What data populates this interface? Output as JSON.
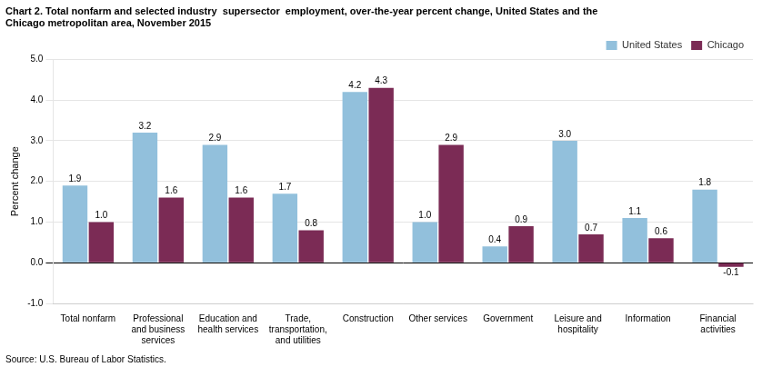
{
  "chart_data": {
    "type": "bar",
    "title": [
      "Chart 2. Total nonfarm and selected industry  supersector  employment, over-the-year percent change, United States and the",
      "Chicago metropolitan area, November 2015"
    ],
    "ylabel": "Percent change",
    "source": "Source: U.S. Bureau of Labor Statistics.",
    "categories": [
      "Total nonfarm",
      "Professional\nand business\nservices",
      "Education and\nhealth services",
      "Trade,\ntransportation,\nand utilities",
      "Construction",
      "Other services",
      "Government",
      "Leisure and\nhospitality",
      "Information",
      "Financial\nactivities"
    ],
    "series": [
      {
        "name": "United States",
        "color": "#92C0DC",
        "values": [
          1.9,
          3.2,
          2.9,
          1.7,
          4.2,
          1.0,
          0.4,
          3.0,
          1.1,
          1.8
        ],
        "value_labels": [
          "1.9",
          "3.2",
          "2.9",
          "1.7",
          "4.2",
          "1.0",
          "0.4",
          "3.0",
          "1.1",
          "1.8"
        ]
      },
      {
        "name": "Chicago",
        "color": "#7B2B55",
        "values": [
          1.0,
          1.6,
          1.6,
          0.8,
          4.3,
          2.9,
          0.9,
          0.7,
          0.6,
          -0.1
        ],
        "value_labels": [
          "1.0",
          "1.6",
          "1.6",
          "0.8",
          "4.3",
          "2.9",
          "0.9",
          "0.7",
          "0.6",
          "-0.1"
        ]
      }
    ],
    "ylim": [
      -1.0,
      5.0
    ],
    "yticks": [
      {
        "value": -1.0,
        "label": "-1.0"
      },
      {
        "value": 0.0,
        "label": "0.0"
      },
      {
        "value": 1.0,
        "label": "1.0"
      },
      {
        "value": 2.0,
        "label": "2.0"
      },
      {
        "value": 3.0,
        "label": "3.0"
      },
      {
        "value": 4.0,
        "label": "4.0"
      },
      {
        "value": 5.0,
        "label": "5.0"
      }
    ],
    "grid": true,
    "legend": "upper right",
    "data_labels": true
  }
}
